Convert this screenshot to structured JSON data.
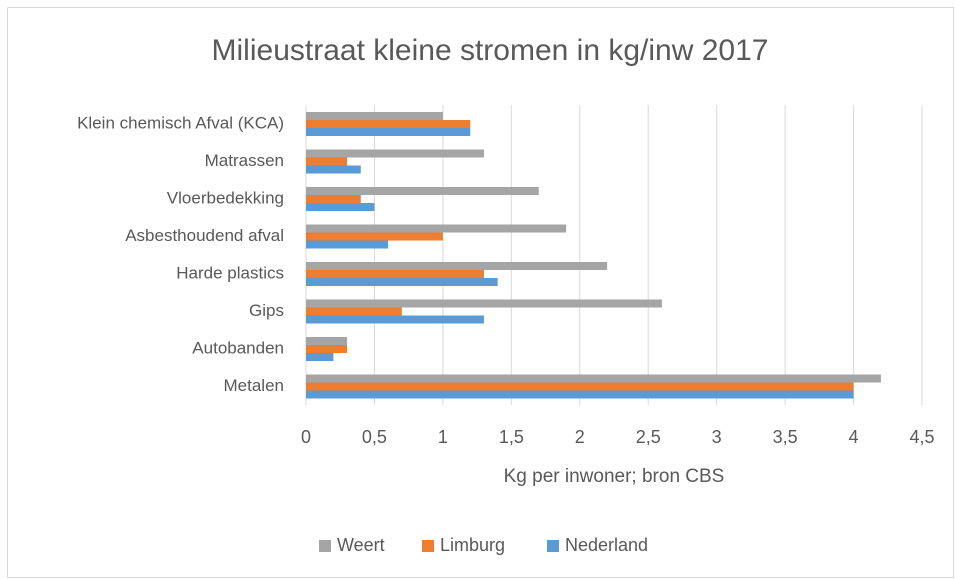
{
  "chart_data": {
    "type": "barh",
    "title": "Milieustraat kleine stromen in kg/inw 2017",
    "x_label": "Kg per inwoner; bron CBS",
    "categories": [
      "Klein chemisch Afval (KCA)",
      "Matrassen",
      "Vloerbedekking",
      "Asbesthoudend afval",
      "Harde plastics",
      "Gips",
      "Autobanden",
      "Metalen"
    ],
    "series": [
      {
        "name": "Weert",
        "color": "#a5a5a5",
        "values": [
          1.0,
          1.3,
          1.7,
          1.9,
          2.2,
          2.6,
          0.3,
          4.2
        ]
      },
      {
        "name": "Limburg",
        "color": "#ed7d31",
        "values": [
          1.2,
          0.3,
          0.4,
          1.0,
          1.3,
          0.7,
          0.3,
          4.0
        ]
      },
      {
        "name": "Nederland",
        "color": "#5b9bd5",
        "values": [
          1.2,
          0.4,
          0.5,
          0.6,
          1.4,
          1.3,
          0.2,
          4.0
        ]
      }
    ],
    "xlim": [
      0,
      4.5
    ],
    "xticks": [
      0,
      {
        "value": 0.5,
        "label": "0,5"
      },
      1,
      {
        "value": 1.5,
        "label": "1,5"
      },
      2,
      {
        "value": 2.5,
        "label": "2,5"
      },
      3,
      {
        "value": 3.5,
        "label": "3,5"
      },
      4,
      {
        "value": 4.5,
        "label": "4,5"
      }
    ],
    "grid": true,
    "legend": "bottom"
  }
}
